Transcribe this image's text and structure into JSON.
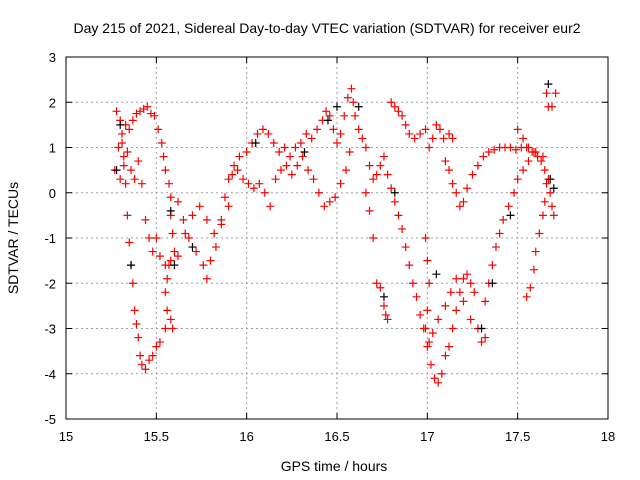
{
  "chart_data": {
    "type": "scatter",
    "title": "Day 215 of 2021, Sidereal Day-to-day VTEC variation (SDTVAR) for receiver eur2",
    "xlabel": "GPS time / hours",
    "ylabel": "SDTVAR / TECUs",
    "xlim": [
      15,
      18
    ],
    "ylim": [
      -5,
      3
    ],
    "xticks": [
      15,
      15.5,
      16,
      16.5,
      17,
      17.5,
      18
    ],
    "xtick_labels": [
      "15",
      "15.5",
      "16",
      "16.5",
      "17",
      "17.5",
      "18"
    ],
    "yticks": [
      -5,
      -4,
      -3,
      -2,
      -1,
      0,
      1,
      2,
      3
    ],
    "ytick_labels": [
      "-5",
      "-4",
      "-3",
      "-2",
      "-1",
      "0",
      "1",
      "2",
      "3"
    ],
    "grid": true,
    "series": [
      {
        "name": "red",
        "color": "#ff0000",
        "marker": "plus",
        "points": [
          [
            15.28,
            1.8
          ],
          [
            15.3,
            1.6
          ],
          [
            15.31,
            1.3
          ],
          [
            15.32,
            0.8
          ],
          [
            15.33,
            0.2
          ],
          [
            15.34,
            -0.5
          ],
          [
            15.35,
            -1.1
          ],
          [
            15.36,
            -1.6
          ],
          [
            15.37,
            -2.0
          ],
          [
            15.38,
            -2.6
          ],
          [
            15.39,
            -2.9
          ],
          [
            15.4,
            -3.2
          ],
          [
            15.41,
            -3.6
          ],
          [
            15.42,
            -3.8
          ],
          [
            15.44,
            -3.9
          ],
          [
            15.46,
            -3.7
          ],
          [
            15.48,
            -3.6
          ],
          [
            15.5,
            -3.4
          ],
          [
            15.52,
            -3.3
          ],
          [
            15.55,
            -3.0
          ],
          [
            15.56,
            -2.6
          ],
          [
            15.55,
            -2.2
          ],
          [
            15.56,
            -1.9
          ],
          [
            15.57,
            -1.6
          ],
          [
            15.59,
            -3.0
          ],
          [
            15.58,
            -2.8
          ],
          [
            15.27,
            0.5
          ],
          [
            15.29,
            1.0
          ],
          [
            15.31,
            1.1
          ],
          [
            15.33,
            1.5
          ],
          [
            15.35,
            1.4
          ],
          [
            15.37,
            1.6
          ],
          [
            15.39,
            1.75
          ],
          [
            15.41,
            1.8
          ],
          [
            15.43,
            1.85
          ],
          [
            15.45,
            1.9
          ],
          [
            15.47,
            1.75
          ],
          [
            15.49,
            1.7
          ],
          [
            15.51,
            1.4
          ],
          [
            15.53,
            1.1
          ],
          [
            15.54,
            0.8
          ],
          [
            15.55,
            0.5
          ],
          [
            15.57,
            0.2
          ],
          [
            15.58,
            -0.1
          ],
          [
            15.58,
            -0.5
          ],
          [
            15.59,
            -0.9
          ],
          [
            15.6,
            -1.3
          ],
          [
            15.3,
            0.3
          ],
          [
            15.32,
            0.6
          ],
          [
            15.34,
            0.9
          ],
          [
            15.36,
            0.5
          ],
          [
            15.38,
            0.3
          ],
          [
            15.4,
            0.7
          ],
          [
            15.42,
            0.2
          ],
          [
            15.44,
            -0.6
          ],
          [
            15.46,
            -1.0
          ],
          [
            15.48,
            -1.3
          ],
          [
            15.5,
            -1.0
          ],
          [
            15.52,
            -1.4
          ],
          [
            15.55,
            -1.6
          ],
          [
            15.58,
            -1.5
          ],
          [
            15.62,
            -1.4
          ],
          [
            15.66,
            -0.9
          ],
          [
            15.7,
            -0.5
          ],
          [
            15.74,
            -0.3
          ],
          [
            15.78,
            -0.6
          ],
          [
            15.82,
            -0.9
          ],
          [
            15.86,
            -0.7
          ],
          [
            15.9,
            -0.3
          ],
          [
            15.62,
            -0.2
          ],
          [
            15.65,
            -0.6
          ],
          [
            15.68,
            -1.0
          ],
          [
            15.72,
            -1.3
          ],
          [
            15.76,
            -1.6
          ],
          [
            15.78,
            -1.9
          ],
          [
            15.8,
            -1.5
          ],
          [
            15.83,
            -1.2
          ],
          [
            15.86,
            -0.6
          ],
          [
            15.88,
            -0.1
          ],
          [
            15.9,
            0.3
          ],
          [
            15.93,
            0.6
          ],
          [
            15.96,
            0.8
          ],
          [
            16.0,
            0.9
          ],
          [
            16.03,
            1.1
          ],
          [
            16.06,
            1.3
          ],
          [
            16.09,
            1.4
          ],
          [
            16.12,
            1.3
          ],
          [
            16.15,
            1.1
          ],
          [
            16.18,
            0.9
          ],
          [
            16.21,
            1.0
          ],
          [
            16.24,
            0.8
          ],
          [
            16.27,
            1.0
          ],
          [
            16.3,
            1.1
          ],
          [
            16.33,
            1.3
          ],
          [
            16.36,
            1.2
          ],
          [
            16.39,
            1.4
          ],
          [
            16.42,
            1.6
          ],
          [
            16.44,
            1.8
          ],
          [
            16.46,
            1.7
          ],
          [
            16.48,
            1.4
          ],
          [
            16.5,
            1.1
          ],
          [
            15.92,
            0.4
          ],
          [
            15.95,
            0.5
          ],
          [
            15.98,
            0.3
          ],
          [
            16.01,
            0.2
          ],
          [
            16.04,
            0.1
          ],
          [
            16.07,
            0.2
          ],
          [
            16.1,
            0.0
          ],
          [
            16.13,
            -0.3
          ],
          [
            16.16,
            0.3
          ],
          [
            16.19,
            0.5
          ],
          [
            16.22,
            0.6
          ],
          [
            16.25,
            0.4
          ],
          [
            16.28,
            0.6
          ],
          [
            16.31,
            0.8
          ],
          [
            16.34,
            0.5
          ],
          [
            16.37,
            0.3
          ],
          [
            16.4,
            0.0
          ],
          [
            16.43,
            -0.3
          ],
          [
            16.46,
            -0.2
          ],
          [
            16.49,
            -0.1
          ],
          [
            16.52,
            0.2
          ],
          [
            16.55,
            0.5
          ],
          [
            16.57,
            0.9
          ],
          [
            16.52,
            1.3
          ],
          [
            16.54,
            1.7
          ],
          [
            16.56,
            2.1
          ],
          [
            16.58,
            2.3
          ],
          [
            16.59,
            2.0
          ],
          [
            16.6,
            1.7
          ],
          [
            16.62,
            1.4
          ],
          [
            16.64,
            1.2
          ],
          [
            16.66,
            1.0
          ],
          [
            16.68,
            0.6
          ],
          [
            16.7,
            0.3
          ],
          [
            16.72,
            0.4
          ],
          [
            16.74,
            0.6
          ],
          [
            16.76,
            0.8
          ],
          [
            16.66,
            0.0
          ],
          [
            16.68,
            -0.4
          ],
          [
            16.7,
            -1.0
          ],
          [
            16.72,
            -2.0
          ],
          [
            16.74,
            -2.1
          ],
          [
            16.76,
            -2.5
          ],
          [
            16.77,
            -2.7
          ],
          [
            16.78,
            -2.8
          ],
          [
            16.8,
            2.0
          ],
          [
            16.82,
            1.9
          ],
          [
            16.84,
            1.8
          ],
          [
            16.86,
            1.7
          ],
          [
            16.88,
            1.5
          ],
          [
            16.9,
            1.3
          ],
          [
            16.93,
            1.2
          ],
          [
            16.96,
            1.3
          ],
          [
            16.99,
            1.4
          ],
          [
            17.01,
            1.0
          ],
          [
            17.03,
            1.2
          ],
          [
            17.05,
            1.5
          ],
          [
            17.07,
            1.4
          ],
          [
            17.09,
            1.2
          ],
          [
            17.12,
            1.3
          ],
          [
            17.14,
            1.2
          ],
          [
            16.78,
            0.4
          ],
          [
            16.8,
            0.1
          ],
          [
            16.82,
            -0.2
          ],
          [
            16.84,
            -0.5
          ],
          [
            16.86,
            -0.8
          ],
          [
            16.88,
            -1.2
          ],
          [
            16.9,
            -1.6
          ],
          [
            16.92,
            -2.0
          ],
          [
            16.94,
            -2.3
          ],
          [
            16.96,
            -2.7
          ],
          [
            16.98,
            -3.0
          ],
          [
            17.0,
            -3.4
          ],
          [
            17.02,
            -3.8
          ],
          [
            17.04,
            -4.1
          ],
          [
            17.06,
            -4.2
          ],
          [
            17.08,
            -4.0
          ],
          [
            17.1,
            -3.6
          ],
          [
            17.12,
            -3.4
          ],
          [
            17.14,
            -3.0
          ],
          [
            17.16,
            -2.6
          ],
          [
            17.18,
            -2.2
          ],
          [
            17.2,
            -1.9
          ],
          [
            17.22,
            -1.8
          ],
          [
            17.24,
            -2.0
          ],
          [
            17.26,
            -2.2
          ],
          [
            16.99,
            -1.0
          ],
          [
            17.0,
            -1.5
          ],
          [
            17.01,
            -2.0
          ],
          [
            17.0,
            -2.6
          ],
          [
            16.99,
            -3.0
          ],
          [
            17.01,
            -3.3
          ],
          [
            17.03,
            -3.1
          ],
          [
            17.06,
            -2.8
          ],
          [
            17.1,
            -2.5
          ],
          [
            17.13,
            -2.2
          ],
          [
            17.16,
            -1.9
          ],
          [
            17.2,
            -2.4
          ],
          [
            17.24,
            -2.8
          ],
          [
            17.28,
            -3.0
          ],
          [
            17.3,
            -3.3
          ],
          [
            17.32,
            -3.2
          ],
          [
            17.1,
            0.7
          ],
          [
            17.12,
            0.5
          ],
          [
            17.14,
            0.2
          ],
          [
            17.16,
            0.0
          ],
          [
            17.18,
            -0.3
          ],
          [
            17.2,
            -0.2
          ],
          [
            17.22,
            0.1
          ],
          [
            17.25,
            0.4
          ],
          [
            17.28,
            0.6
          ],
          [
            17.31,
            0.8
          ],
          [
            17.34,
            0.9
          ],
          [
            17.37,
            0.95
          ],
          [
            17.4,
            1.0
          ],
          [
            17.43,
            1.0
          ],
          [
            17.46,
            1.0
          ],
          [
            17.49,
            0.95
          ],
          [
            17.52,
            1.0
          ],
          [
            17.55,
            1.0
          ],
          [
            17.58,
            0.9
          ],
          [
            17.61,
            0.8
          ],
          [
            17.63,
            0.7
          ],
          [
            17.65,
            0.5
          ],
          [
            17.67,
            0.3
          ],
          [
            17.68,
            0.0
          ],
          [
            17.69,
            -0.3
          ],
          [
            17.7,
            -0.5
          ],
          [
            17.32,
            -2.4
          ],
          [
            17.34,
            -2.0
          ],
          [
            17.36,
            -1.6
          ],
          [
            17.38,
            -1.2
          ],
          [
            17.4,
            -0.9
          ],
          [
            17.42,
            -0.6
          ],
          [
            17.45,
            -0.3
          ],
          [
            17.48,
            0.0
          ],
          [
            17.5,
            0.3
          ],
          [
            17.53,
            0.5
          ],
          [
            17.56,
            0.7
          ],
          [
            17.59,
            0.9
          ],
          [
            17.55,
            -2.3
          ],
          [
            17.57,
            -2.1
          ],
          [
            17.59,
            -1.7
          ],
          [
            17.6,
            -1.3
          ],
          [
            17.62,
            -0.9
          ],
          [
            17.64,
            -0.5
          ],
          [
            17.65,
            -0.2
          ],
          [
            17.66,
            0.2
          ],
          [
            17.68,
            0.3
          ],
          [
            17.5,
            1.4
          ],
          [
            17.53,
            1.2
          ],
          [
            17.56,
            1.0
          ],
          [
            17.6,
            0.9
          ],
          [
            17.64,
            0.8
          ],
          [
            17.66,
            2.2
          ],
          [
            17.67,
            1.9
          ],
          [
            17.69,
            1.9
          ],
          [
            17.71,
            2.2
          ]
        ]
      },
      {
        "name": "black",
        "color": "#000000",
        "marker": "plus",
        "points": [
          [
            15.28,
            0.5
          ],
          [
            15.3,
            1.5
          ],
          [
            15.36,
            -1.6
          ],
          [
            15.58,
            -0.4
          ],
          [
            15.6,
            -1.6
          ],
          [
            15.7,
            -1.2
          ],
          [
            16.05,
            1.1
          ],
          [
            16.32,
            0.9
          ],
          [
            16.45,
            1.6
          ],
          [
            16.5,
            1.9
          ],
          [
            16.62,
            1.9
          ],
          [
            16.76,
            -2.3
          ],
          [
            16.82,
            0.0
          ],
          [
            17.05,
            -1.8
          ],
          [
            17.3,
            -3.0
          ],
          [
            17.36,
            -2.0
          ],
          [
            17.46,
            -0.5
          ],
          [
            17.67,
            2.4
          ],
          [
            17.68,
            0.3
          ],
          [
            17.7,
            0.1
          ]
        ]
      }
    ]
  }
}
